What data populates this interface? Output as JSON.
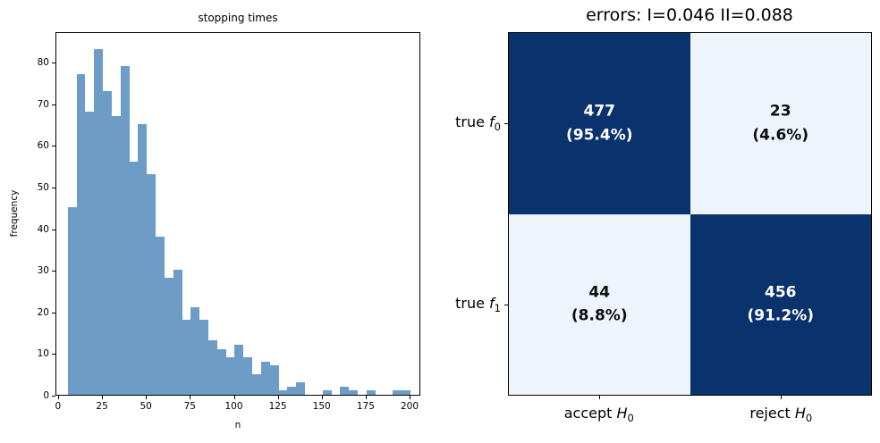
{
  "figure": {
    "background": "#ffffff",
    "accent_dark": "#0a326c",
    "accent_light": "#eef4fb",
    "bar_color": "#6d9cc6"
  },
  "chart_data": [
    {
      "type": "bar",
      "subtype": "histogram",
      "title": "stopping times",
      "xlabel": "n",
      "ylabel": "frequency",
      "bin_start": 5,
      "bin_width": 5,
      "values": [
        45,
        77,
        68,
        83,
        73,
        67,
        79,
        56,
        65,
        53,
        38,
        28,
        30,
        18,
        21,
        18,
        13,
        11,
        9,
        12,
        9,
        5,
        8,
        7,
        1,
        2,
        3,
        0,
        0,
        1,
        0,
        2,
        1,
        0,
        1,
        0,
        0,
        1,
        1,
        0
      ],
      "x_ticks": [
        0,
        25,
        50,
        75,
        100,
        125,
        150,
        175,
        200
      ],
      "y_ticks": [
        0,
        10,
        20,
        30,
        40,
        50,
        60,
        70,
        80
      ],
      "xlim": [
        -1.5,
        206.1
      ],
      "ylim": [
        0,
        87.3
      ],
      "grid": false,
      "legend": null,
      "bar_color": "#6d9cc6"
    },
    {
      "type": "heatmap",
      "subtype": "confusion-matrix",
      "title": "errors: I=0.046 II=0.088",
      "row_labels": [
        {
          "prefix": "true ",
          "symbol": "f",
          "sub": "0"
        },
        {
          "prefix": "true ",
          "symbol": "f",
          "sub": "1"
        }
      ],
      "col_labels": [
        {
          "prefix": "accept ",
          "symbol": "H",
          "sub": "0"
        },
        {
          "prefix": "reject ",
          "symbol": "H",
          "sub": "0"
        }
      ],
      "cells": [
        [
          {
            "count": "477",
            "pct": "(95.4%)",
            "bg": "#0a326c",
            "fg": "#ffffff"
          },
          {
            "count": "23",
            "pct": "(4.6%)",
            "bg": "#eef4fb",
            "fg": "#0d0d0d"
          }
        ],
        [
          {
            "count": "44",
            "pct": "(8.8%)",
            "bg": "#eef4fb",
            "fg": "#0d0d0d"
          },
          {
            "count": "456",
            "pct": "(91.2%)",
            "bg": "#0a326c",
            "fg": "#ffffff"
          }
        ]
      ]
    }
  ]
}
